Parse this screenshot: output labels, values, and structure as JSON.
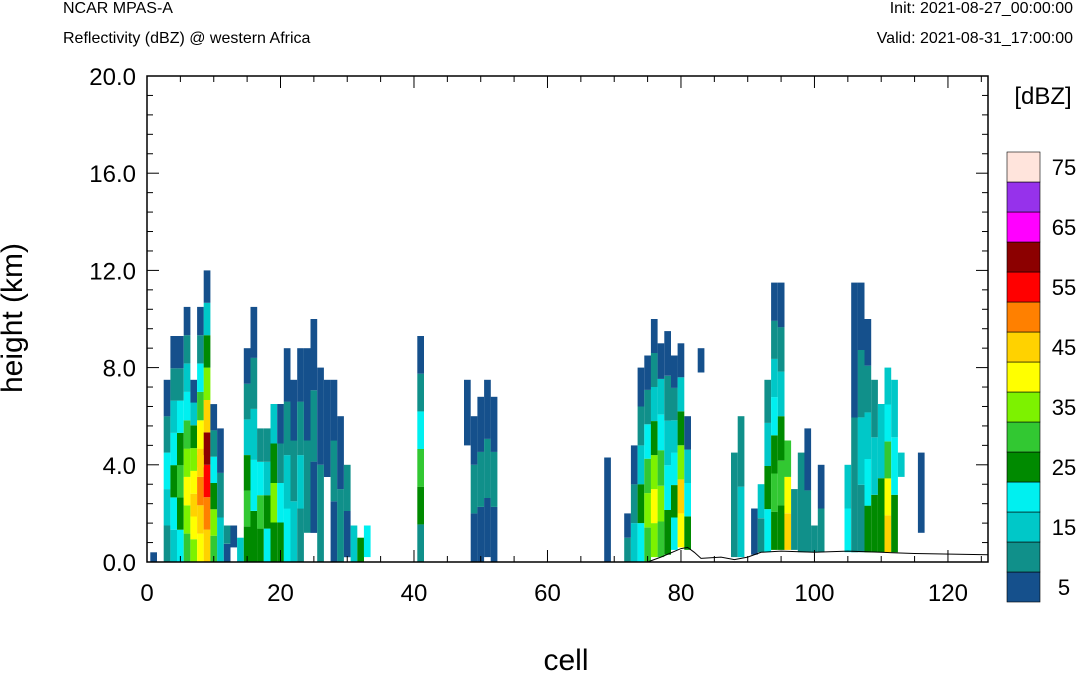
{
  "header": {
    "model": "NCAR MPAS-A",
    "field": "Reflectivity (dBZ) @ western Africa",
    "init": "Init: 2021-08-27_00:00:00",
    "valid": "Valid: 2021-08-31_17:00:00"
  },
  "chart_data": {
    "type": "heatmap",
    "xlabel": "cell",
    "ylabel": "height (km)",
    "xlim": [
      0,
      126
    ],
    "ylim": [
      0,
      20
    ],
    "x_ticks": [
      0,
      20,
      40,
      60,
      80,
      100,
      120
    ],
    "x_tick_labels": [
      "0",
      "20",
      "40",
      "60",
      "80",
      "100",
      "120"
    ],
    "y_ticks": [
      0,
      4,
      8,
      12,
      16,
      20
    ],
    "y_tick_labels": [
      "0.0",
      "4.0",
      "8.0",
      "12.0",
      "16.0",
      "20.0"
    ],
    "colorbar": {
      "units": "[dBZ]",
      "levels": [
        5,
        10,
        15,
        20,
        25,
        30,
        35,
        40,
        45,
        50,
        55,
        60,
        65,
        70,
        75
      ],
      "labels": [
        "5",
        "15",
        "25",
        "35",
        "45",
        "55",
        "65",
        "75"
      ],
      "colors": [
        "#15508c",
        "#10908a",
        "#00c8c8",
        "#00f0f0",
        "#008a00",
        "#32c832",
        "#7df200",
        "#ffff00",
        "#ffd200",
        "#ff8000",
        "#ff0000",
        "#8c0000",
        "#ff00ff",
        "#9632eb",
        "#ffe4dc"
      ]
    },
    "terrain_km": [
      [
        0,
        0
      ],
      [
        75,
        0
      ],
      [
        77,
        0.2
      ],
      [
        80,
        0.55
      ],
      [
        81,
        0.6
      ],
      [
        82,
        0.4
      ],
      [
        83,
        0.15
      ],
      [
        86,
        0.2
      ],
      [
        88,
        0.1
      ],
      [
        90,
        0.2
      ],
      [
        92,
        0.4
      ],
      [
        95,
        0.45
      ],
      [
        100,
        0.4
      ],
      [
        105,
        0.45
      ],
      [
        110,
        0.4
      ],
      [
        115,
        0.35
      ],
      [
        126,
        0.3
      ]
    ],
    "columns": [
      {
        "x": 1,
        "top": 0.4,
        "bot": 0,
        "v": [
          5
        ]
      },
      {
        "x": 3,
        "top": 7.5,
        "bot": 0,
        "v": [
          10,
          15,
          20,
          10,
          5
        ]
      },
      {
        "x": 4,
        "top": 9.3,
        "bot": 0,
        "v": [
          15,
          20,
          25,
          20,
          15,
          10,
          5
        ]
      },
      {
        "x": 5,
        "top": 9.3,
        "bot": 0,
        "v": [
          20,
          25,
          30,
          25,
          20,
          10,
          5
        ]
      },
      {
        "x": 6,
        "top": 10.5,
        "bot": 0,
        "v": [
          30,
          35,
          40,
          35,
          30,
          20,
          15,
          10,
          5
        ]
      },
      {
        "x": 7,
        "top": 7.5,
        "bot": 0,
        "v": [
          35,
          40,
          45,
          40,
          35,
          25,
          15,
          5
        ]
      },
      {
        "x": 8,
        "top": 10.5,
        "bot": 0,
        "v": [
          40,
          45,
          50,
          45,
          40,
          30,
          20,
          10,
          5
        ]
      },
      {
        "x": 9,
        "top": 12.0,
        "bot": 0,
        "v": [
          45,
          50,
          55,
          60,
          45,
          35,
          25,
          15,
          5
        ]
      },
      {
        "x": 10,
        "top": 6.5,
        "bot": 0,
        "v": [
          30,
          35,
          25,
          20,
          10,
          5
        ]
      },
      {
        "x": 11,
        "top": 5.5,
        "bot": 0,
        "v": [
          15,
          10,
          5
        ]
      },
      {
        "x": 12,
        "top": 1.5,
        "bot": 0,
        "v": [
          5,
          10
        ]
      },
      {
        "x": 13,
        "top": 1.5,
        "bot": 0.6,
        "v": [
          5
        ]
      },
      {
        "x": 14,
        "top": 1.0,
        "bot": 0,
        "v": [
          15
        ]
      },
      {
        "x": 15,
        "top": 8.8,
        "bot": 0,
        "v": [
          25,
          30,
          25,
          15,
          10,
          5
        ]
      },
      {
        "x": 16,
        "top": 10.5,
        "bot": 0,
        "v": [
          25,
          20,
          15,
          10,
          5
        ]
      },
      {
        "x": 17,
        "top": 5.5,
        "bot": 0,
        "v": [
          25,
          30,
          20,
          10
        ]
      },
      {
        "x": 18,
        "top": 5.5,
        "bot": 0,
        "v": [
          20,
          25,
          15,
          10
        ]
      },
      {
        "x": 19,
        "top": 6.5,
        "bot": 0,
        "v": [
          25,
          35,
          25,
          15
        ]
      },
      {
        "x": 20,
        "top": 6.5,
        "bot": 0,
        "v": [
          25,
          20,
          10,
          5
        ]
      },
      {
        "x": 21,
        "top": 8.8,
        "bot": 0,
        "v": [
          20,
          15,
          10,
          5
        ]
      },
      {
        "x": 22,
        "top": 7.5,
        "bot": 0,
        "v": [
          15,
          10,
          5
        ]
      },
      {
        "x": 23,
        "top": 8.8,
        "bot": 0,
        "v": [
          10,
          15,
          10,
          5
        ]
      },
      {
        "x": 24,
        "top": 8.8,
        "bot": 1.2,
        "v": [
          10,
          5
        ]
      },
      {
        "x": 25,
        "top": 10.0,
        "bot": 1.2,
        "v": [
          5,
          10,
          5
        ]
      },
      {
        "x": 26,
        "top": 8.0,
        "bot": 0,
        "v": [
          10,
          5
        ]
      },
      {
        "x": 27,
        "top": 7.5,
        "bot": 3.5,
        "v": [
          5
        ]
      },
      {
        "x": 28,
        "top": 7.5,
        "bot": 0,
        "v": [
          5,
          10,
          5
        ]
      },
      {
        "x": 29,
        "top": 6.0,
        "bot": 0,
        "v": [
          10,
          5
        ]
      },
      {
        "x": 30,
        "top": 4.0,
        "bot": 0.2,
        "v": [
          5,
          10
        ]
      },
      {
        "x": 31,
        "top": 1.5,
        "bot": 0,
        "v": [
          15
        ]
      },
      {
        "x": 32,
        "top": 1.0,
        "bot": 0,
        "v": [
          25
        ]
      },
      {
        "x": 33,
        "top": 1.5,
        "bot": 0.2,
        "v": [
          20
        ]
      },
      {
        "x": 41,
        "top": 9.3,
        "bot": 0,
        "v": [
          10,
          25,
          30,
          20,
          10,
          5
        ]
      },
      {
        "x": 48,
        "top": 7.5,
        "bot": 4.8,
        "v": [
          5
        ]
      },
      {
        "x": 49,
        "top": 6.0,
        "bot": 0,
        "v": [
          5,
          10,
          5
        ]
      },
      {
        "x": 50,
        "top": 6.8,
        "bot": 0,
        "v": [
          5,
          10,
          5
        ]
      },
      {
        "x": 51,
        "top": 7.5,
        "bot": 0.2,
        "v": [
          5,
          10,
          5
        ]
      },
      {
        "x": 52,
        "top": 6.8,
        "bot": 0,
        "v": [
          5,
          10,
          5
        ]
      },
      {
        "x": 69,
        "top": 4.3,
        "bot": 0,
        "v": [
          5
        ]
      },
      {
        "x": 72,
        "top": 2.0,
        "bot": 0,
        "v": [
          10,
          5
        ]
      },
      {
        "x": 73,
        "top": 4.8,
        "bot": 0,
        "v": [
          15,
          10,
          5
        ]
      },
      {
        "x": 74,
        "top": 8.0,
        "bot": 0,
        "v": [
          20,
          25,
          15,
          10,
          5
        ]
      },
      {
        "x": 75,
        "top": 8.5,
        "bot": 0,
        "v": [
          30,
          35,
          30,
          20,
          10,
          5
        ]
      },
      {
        "x": 76,
        "top": 10.0,
        "bot": 0.2,
        "v": [
          35,
          40,
          35,
          25,
          15,
          10,
          5
        ]
      },
      {
        "x": 77,
        "top": 9.0,
        "bot": 0.2,
        "v": [
          30,
          35,
          30,
          20,
          15,
          5
        ]
      },
      {
        "x": 78,
        "top": 9.5,
        "bot": 0.3,
        "v": [
          25,
          20,
          15,
          10,
          5
        ]
      },
      {
        "x": 79,
        "top": 8.5,
        "bot": 0.5,
        "v": [
          20,
          25,
          20,
          15,
          10,
          5
        ]
      },
      {
        "x": 80,
        "top": 9.0,
        "bot": 0.6,
        "v": [
          40,
          45,
          35,
          25,
          15,
          5
        ]
      },
      {
        "x": 81,
        "top": 6.0,
        "bot": 0.5,
        "v": [
          25,
          20,
          15,
          5
        ]
      },
      {
        "x": 83,
        "top": 8.8,
        "bot": 7.8,
        "v": [
          5
        ]
      },
      {
        "x": 88,
        "top": 4.5,
        "bot": 0.2,
        "v": [
          10
        ]
      },
      {
        "x": 89,
        "top": 6.0,
        "bot": 0.2,
        "v": [
          15,
          10
        ]
      },
      {
        "x": 91,
        "top": 2.2,
        "bot": 0.3,
        "v": [
          5
        ]
      },
      {
        "x": 92,
        "top": 3.2,
        "bot": 0.4,
        "v": [
          10,
          15
        ]
      },
      {
        "x": 93,
        "top": 7.5,
        "bot": 0.4,
        "v": [
          20,
          25,
          15,
          10
        ]
      },
      {
        "x": 94,
        "top": 11.5,
        "bot": 0.5,
        "v": [
          25,
          30,
          25,
          20,
          15,
          10,
          5
        ]
      },
      {
        "x": 95,
        "top": 11.5,
        "bot": 0.5,
        "v": [
          25,
          30,
          25,
          15,
          10,
          5
        ]
      },
      {
        "x": 96,
        "top": 5.0,
        "bot": 0.5,
        "v": [
          45,
          40,
          30
        ]
      },
      {
        "x": 97,
        "top": 3.0,
        "bot": 0.5,
        "v": [
          10
        ]
      },
      {
        "x": 98,
        "top": 4.5,
        "bot": 0.4,
        "v": [
          10
        ]
      },
      {
        "x": 99,
        "top": 5.5,
        "bot": 0.4,
        "v": [
          10,
          5
        ]
      },
      {
        "x": 100,
        "top": 1.5,
        "bot": 0.4,
        "v": [
          10
        ]
      },
      {
        "x": 101,
        "top": 4.0,
        "bot": 0.4,
        "v": [
          10,
          5
        ]
      },
      {
        "x": 105,
        "top": 4.0,
        "bot": 0.4,
        "v": [
          20,
          15
        ]
      },
      {
        "x": 106,
        "top": 11.5,
        "bot": 0.4,
        "v": [
          10,
          5
        ]
      },
      {
        "x": 107,
        "top": 11.5,
        "bot": 0.4,
        "v": [
          10,
          15,
          10,
          5
        ]
      },
      {
        "x": 108,
        "top": 10.0,
        "bot": 0.4,
        "v": [
          25,
          20,
          15,
          10,
          5
        ]
      },
      {
        "x": 109,
        "top": 7.5,
        "bot": 0.4,
        "v": [
          25,
          15,
          10
        ]
      },
      {
        "x": 110,
        "top": 6.5,
        "bot": 0.4,
        "v": [
          25,
          15
        ]
      },
      {
        "x": 111,
        "top": 8.0,
        "bot": 0.4,
        "v": [
          45,
          40,
          30,
          20,
          15
        ]
      },
      {
        "x": 112,
        "top": 7.5,
        "bot": 0.4,
        "v": [
          25,
          20,
          15
        ]
      },
      {
        "x": 113,
        "top": 4.5,
        "bot": 3.5,
        "v": [
          15
        ]
      },
      {
        "x": 116,
        "top": 4.5,
        "bot": 1.2,
        "v": [
          5
        ]
      },
      {
        "x": 8,
        "top": 4.4,
        "bot": 3.9,
        "v": [
          45
        ]
      }
    ]
  }
}
